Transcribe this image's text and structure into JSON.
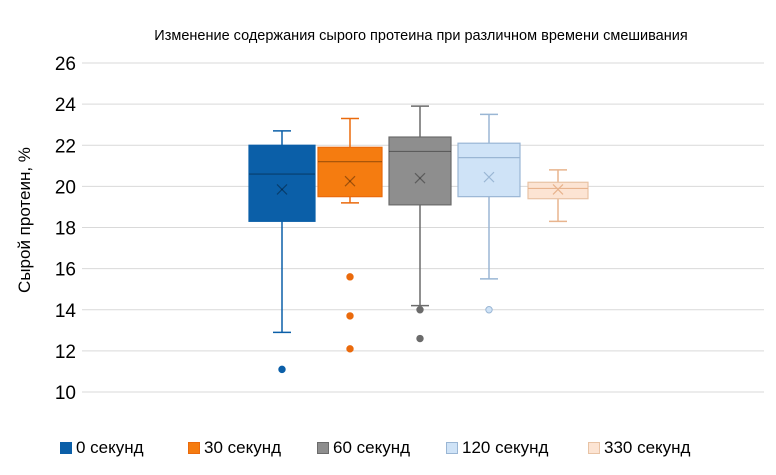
{
  "chart_data": {
    "type": "box",
    "title": "Изменение содержания сырого протеина при различном времени смешивания",
    "ylabel": "Сырой протеин, %",
    "xlabel": "",
    "ylim": [
      10,
      26
    ],
    "yticks": [
      10,
      12,
      14,
      16,
      18,
      20,
      22,
      24,
      26
    ],
    "grid": true,
    "legend_position": "bottom",
    "series": [
      {
        "name": "0 секунд",
        "color": "#0B5FA8",
        "fill": "#0B5FA8",
        "whisker_low": 12.9,
        "q1": 18.3,
        "median": 20.6,
        "mean": 19.85,
        "q3": 22.0,
        "whisker_high": 22.7,
        "outliers": [
          11.1
        ]
      },
      {
        "name": "30 секунд",
        "color": "#EA6A0C",
        "fill": "#F57C10",
        "whisker_low": 19.2,
        "q1": 19.5,
        "median": 21.2,
        "mean": 20.25,
        "q3": 21.9,
        "whisker_high": 23.3,
        "outliers": [
          15.6,
          13.7,
          12.1
        ]
      },
      {
        "name": "60 секунд",
        "color": "#6B6B6B",
        "fill": "#8E8E8E",
        "whisker_low": 14.2,
        "q1": 19.1,
        "median": 21.7,
        "mean": 20.4,
        "q3": 22.4,
        "whisker_high": 23.9,
        "outliers": [
          14.0,
          12.6
        ]
      },
      {
        "name": "120 секунд",
        "color": "#9AB6D4",
        "fill": "#CFE3F7",
        "whisker_low": 15.5,
        "q1": 19.5,
        "median": 21.4,
        "mean": 20.45,
        "q3": 22.1,
        "whisker_high": 23.5,
        "outliers": [
          14.0
        ]
      },
      {
        "name": "330 секунд",
        "color": "#E8C3A5",
        "fill": "#FCE4D3",
        "whisker_low": 18.3,
        "q1": 19.4,
        "median": 19.9,
        "mean": 19.85,
        "q3": 20.2,
        "whisker_high": 20.8,
        "outliers": []
      }
    ]
  }
}
